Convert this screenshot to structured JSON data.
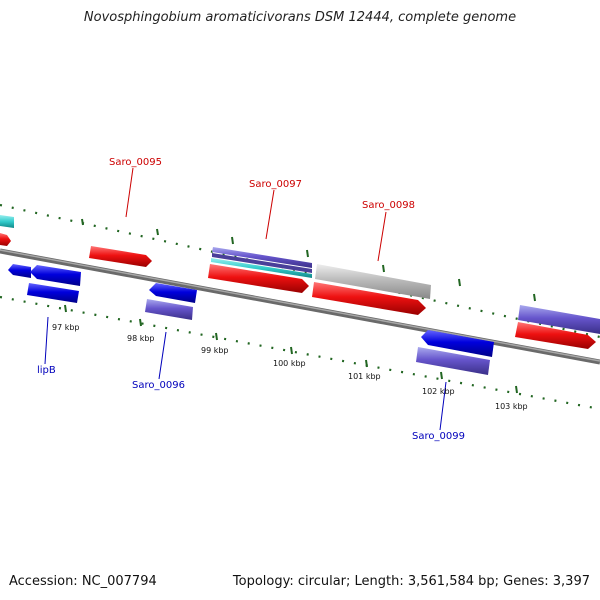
{
  "title": "Novosphingobium aromaticivorans DSM 12444, complete genome",
  "accession": "Accession: NC_007794",
  "summary": "Topology: circular; Length: 3,561,584 bp; Genes: 3,397",
  "colors": {
    "forward_cds": "#ee1111",
    "reverse_cds": "#0000dd",
    "reverse_cds_alt": "#6655cc",
    "rna": "#33cccc",
    "pseudo": "#bbbbbb",
    "backbone": "#7a7a7a",
    "ticks": "#226622"
  },
  "kbp_labels": [
    "97 kbp",
    "98 kbp",
    "99 kbp",
    "100 kbp",
    "101 kbp",
    "102 kbp",
    "103 kbp"
  ],
  "gene_labels": {
    "saro_0095": "Saro_0095",
    "saro_0097": "Saro_0097",
    "saro_0098": "Saro_0098",
    "lipb": "lipB",
    "saro_0096": "Saro_0096",
    "saro_0099": "Saro_0099"
  }
}
